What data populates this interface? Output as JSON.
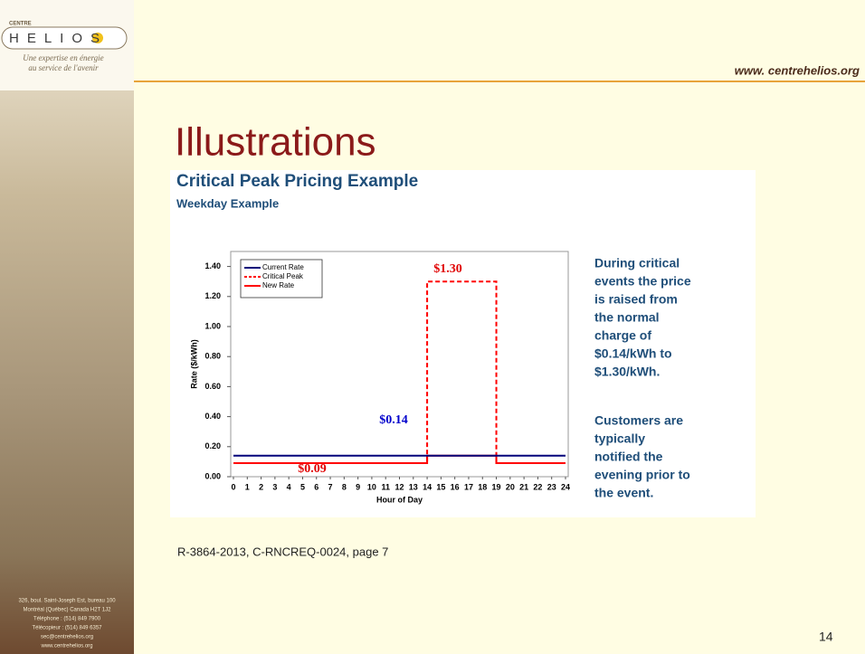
{
  "sidebar": {
    "logo_small": "CENTRE",
    "logo": "HELIOS",
    "tagline": [
      "Une expertise en énergie",
      "au service de l'avenir"
    ],
    "address": [
      "326, boul. Saint-Joseph Est, bureau 100",
      "Montréal (Québec) Canada H2T 1J2",
      "Téléphone : (514) 849 7900",
      "Télécopieur : (514) 849 6357",
      "sec@centrehelios.org",
      "www.centrehelios.org"
    ]
  },
  "header": {
    "url": "www. centrehelios.org",
    "title": "Illustrations"
  },
  "chart_data": {
    "type": "line",
    "title": "Critical Peak Pricing Example",
    "subtitle": "Weekday Example",
    "x_label": "Hour of Day",
    "y_label": "Rate ($/kWh)",
    "xlim": [
      0,
      24
    ],
    "xticks": [
      0,
      1,
      2,
      3,
      4,
      5,
      6,
      7,
      8,
      9,
      10,
      11,
      12,
      13,
      14,
      15,
      16,
      17,
      18,
      19,
      20,
      21,
      22,
      23,
      24
    ],
    "ylim": [
      0,
      1.5
    ],
    "yticks": [
      {
        "value": 0,
        "label": "0.00"
      },
      {
        "value": 0.2,
        "label": "0.20"
      },
      {
        "value": 0.4,
        "label": "0.40"
      },
      {
        "value": 0.6,
        "label": "0.60"
      },
      {
        "value": 0.8,
        "label": "0.80"
      },
      {
        "value": 1,
        "label": "1.00"
      },
      {
        "value": 1.2,
        "label": "1.20"
      },
      {
        "value": 1.4,
        "label": "1.40"
      }
    ],
    "legend": "top-left",
    "series": [
      {
        "name": "Current Rate",
        "color": "#00007a",
        "dashed": false,
        "x": [
          0,
          24
        ],
        "values": [
          0.14,
          0.14
        ]
      },
      {
        "name": "Critical Peak",
        "color": "#ff0000",
        "dashed": true,
        "x": [
          0,
          14,
          14,
          19,
          19,
          24
        ],
        "values": [
          0.09,
          0.09,
          1.3,
          1.3,
          0.09,
          0.09
        ]
      },
      {
        "name": "New Rate",
        "color": "#ff0000",
        "dashed": false,
        "x": [
          0,
          14,
          14,
          19,
          19,
          24
        ],
        "values": [
          0.09,
          0.09,
          0.14,
          0.14,
          0.09,
          0.09
        ]
      }
    ],
    "annotations": [
      {
        "text": "$1.30",
        "color": "#e00000"
      },
      {
        "text": "$0.14",
        "color": "#0000cc"
      },
      {
        "text": "$0.09",
        "color": "#e00000"
      }
    ]
  },
  "notes": {
    "paragraph1": [
      "During critical",
      "events the price",
      "is raised from",
      "the normal",
      "charge of",
      "$0.14/kWh to",
      "$1.30/kWh."
    ],
    "paragraph2": [
      "Customers are",
      "typically",
      "notified the",
      "evening  prior to",
      "the event."
    ]
  },
  "footer": {
    "source": "R-3864-2013, C-RNCREQ-0024, page 7",
    "page": "14"
  }
}
